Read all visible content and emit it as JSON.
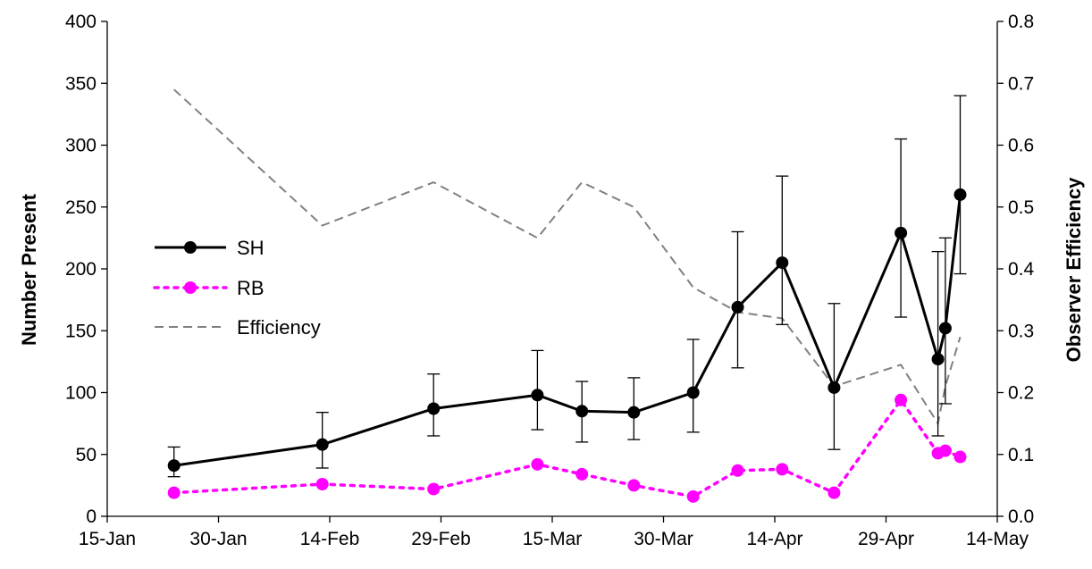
{
  "chart_data": {
    "type": "line",
    "ylabel": "Number Present",
    "y2label": "Observer Efficiency",
    "x_ticks": [
      "15-Jan",
      "30-Jan",
      "14-Feb",
      "29-Feb",
      "15-Mar",
      "30-Mar",
      "14-Apr",
      "29-Apr",
      "14-May"
    ],
    "y_ticks": [
      "0",
      "50",
      "100",
      "150",
      "200",
      "250",
      "300",
      "350",
      "400"
    ],
    "y2_ticks": [
      "0.0",
      "0.1",
      "0.2",
      "0.3",
      "0.4",
      "0.5",
      "0.6",
      "0.7",
      "0.8"
    ],
    "xlim": [
      "15-Jan",
      "14-May"
    ],
    "ylim": [
      0,
      400
    ],
    "y2lim": [
      0,
      0.8
    ],
    "grid": false,
    "legend_position": "left",
    "series": [
      {
        "name": "SH",
        "color": "#000000",
        "style": "solid line with filled circle markers",
        "axis": "left",
        "points": [
          {
            "x": "24-Jan",
            "y": 41,
            "err_low": 9,
            "err_high": 15
          },
          {
            "x": "13-Feb",
            "y": 58,
            "err_low": 19,
            "err_high": 26
          },
          {
            "x": "28-Feb",
            "y": 87,
            "err_low": 22,
            "err_high": 28
          },
          {
            "x": "13-Mar",
            "y": 98,
            "err_low": 28,
            "err_high": 36
          },
          {
            "x": "19-Mar",
            "y": 85,
            "err_low": 25,
            "err_high": 24
          },
          {
            "x": "26-Mar",
            "y": 84,
            "err_low": 22,
            "err_high": 28
          },
          {
            "x": "3-Apr",
            "y": 100,
            "err_low": 32,
            "err_high": 43
          },
          {
            "x": "9-Apr",
            "y": 169,
            "err_low": 49,
            "err_high": 61
          },
          {
            "x": "15-Apr",
            "y": 205,
            "err_low": 50,
            "err_high": 70
          },
          {
            "x": "22-Apr",
            "y": 104,
            "err_low": 50,
            "err_high": 68
          },
          {
            "x": "1-May",
            "y": 229,
            "err_low": 68,
            "err_high": 76
          },
          {
            "x": "6-May",
            "y": 127,
            "err_low": 62,
            "err_high": 87
          },
          {
            "x": "7-May",
            "y": 152,
            "err_low": 61,
            "err_high": 73
          },
          {
            "x": "9-May",
            "y": 260,
            "err_low": 64,
            "err_high": 80
          }
        ]
      },
      {
        "name": "RB",
        "color": "#ff00ff",
        "style": "dotted line with filled circle markers",
        "axis": "left",
        "points": [
          {
            "x": "24-Jan",
            "y": 19
          },
          {
            "x": "13-Feb",
            "y": 26
          },
          {
            "x": "28-Feb",
            "y": 22
          },
          {
            "x": "13-Mar",
            "y": 42
          },
          {
            "x": "19-Mar",
            "y": 34
          },
          {
            "x": "26-Mar",
            "y": 25
          },
          {
            "x": "3-Apr",
            "y": 16
          },
          {
            "x": "9-Apr",
            "y": 37
          },
          {
            "x": "15-Apr",
            "y": 38
          },
          {
            "x": "22-Apr",
            "y": 19
          },
          {
            "x": "1-May",
            "y": 94
          },
          {
            "x": "6-May",
            "y": 51
          },
          {
            "x": "7-May",
            "y": 53
          },
          {
            "x": "9-May",
            "y": 48
          }
        ]
      },
      {
        "name": "Efficiency",
        "color": "#808080",
        "style": "dashed line",
        "axis": "right",
        "points": [
          {
            "x": "24-Jan",
            "y": 0.69
          },
          {
            "x": "13-Feb",
            "y": 0.47
          },
          {
            "x": "28-Feb",
            "y": 0.54
          },
          {
            "x": "13-Mar",
            "y": 0.45
          },
          {
            "x": "19-Mar",
            "y": 0.54
          },
          {
            "x": "26-Mar",
            "y": 0.5
          },
          {
            "x": "3-Apr",
            "y": 0.37
          },
          {
            "x": "9-Apr",
            "y": 0.33
          },
          {
            "x": "15-Apr",
            "y": 0.32
          },
          {
            "x": "22-Apr",
            "y": 0.21
          },
          {
            "x": "1-May",
            "y": 0.245
          },
          {
            "x": "6-May",
            "y": 0.15
          },
          {
            "x": "7-May",
            "y": 0.21
          },
          {
            "x": "9-May",
            "y": 0.29
          }
        ]
      }
    ]
  }
}
